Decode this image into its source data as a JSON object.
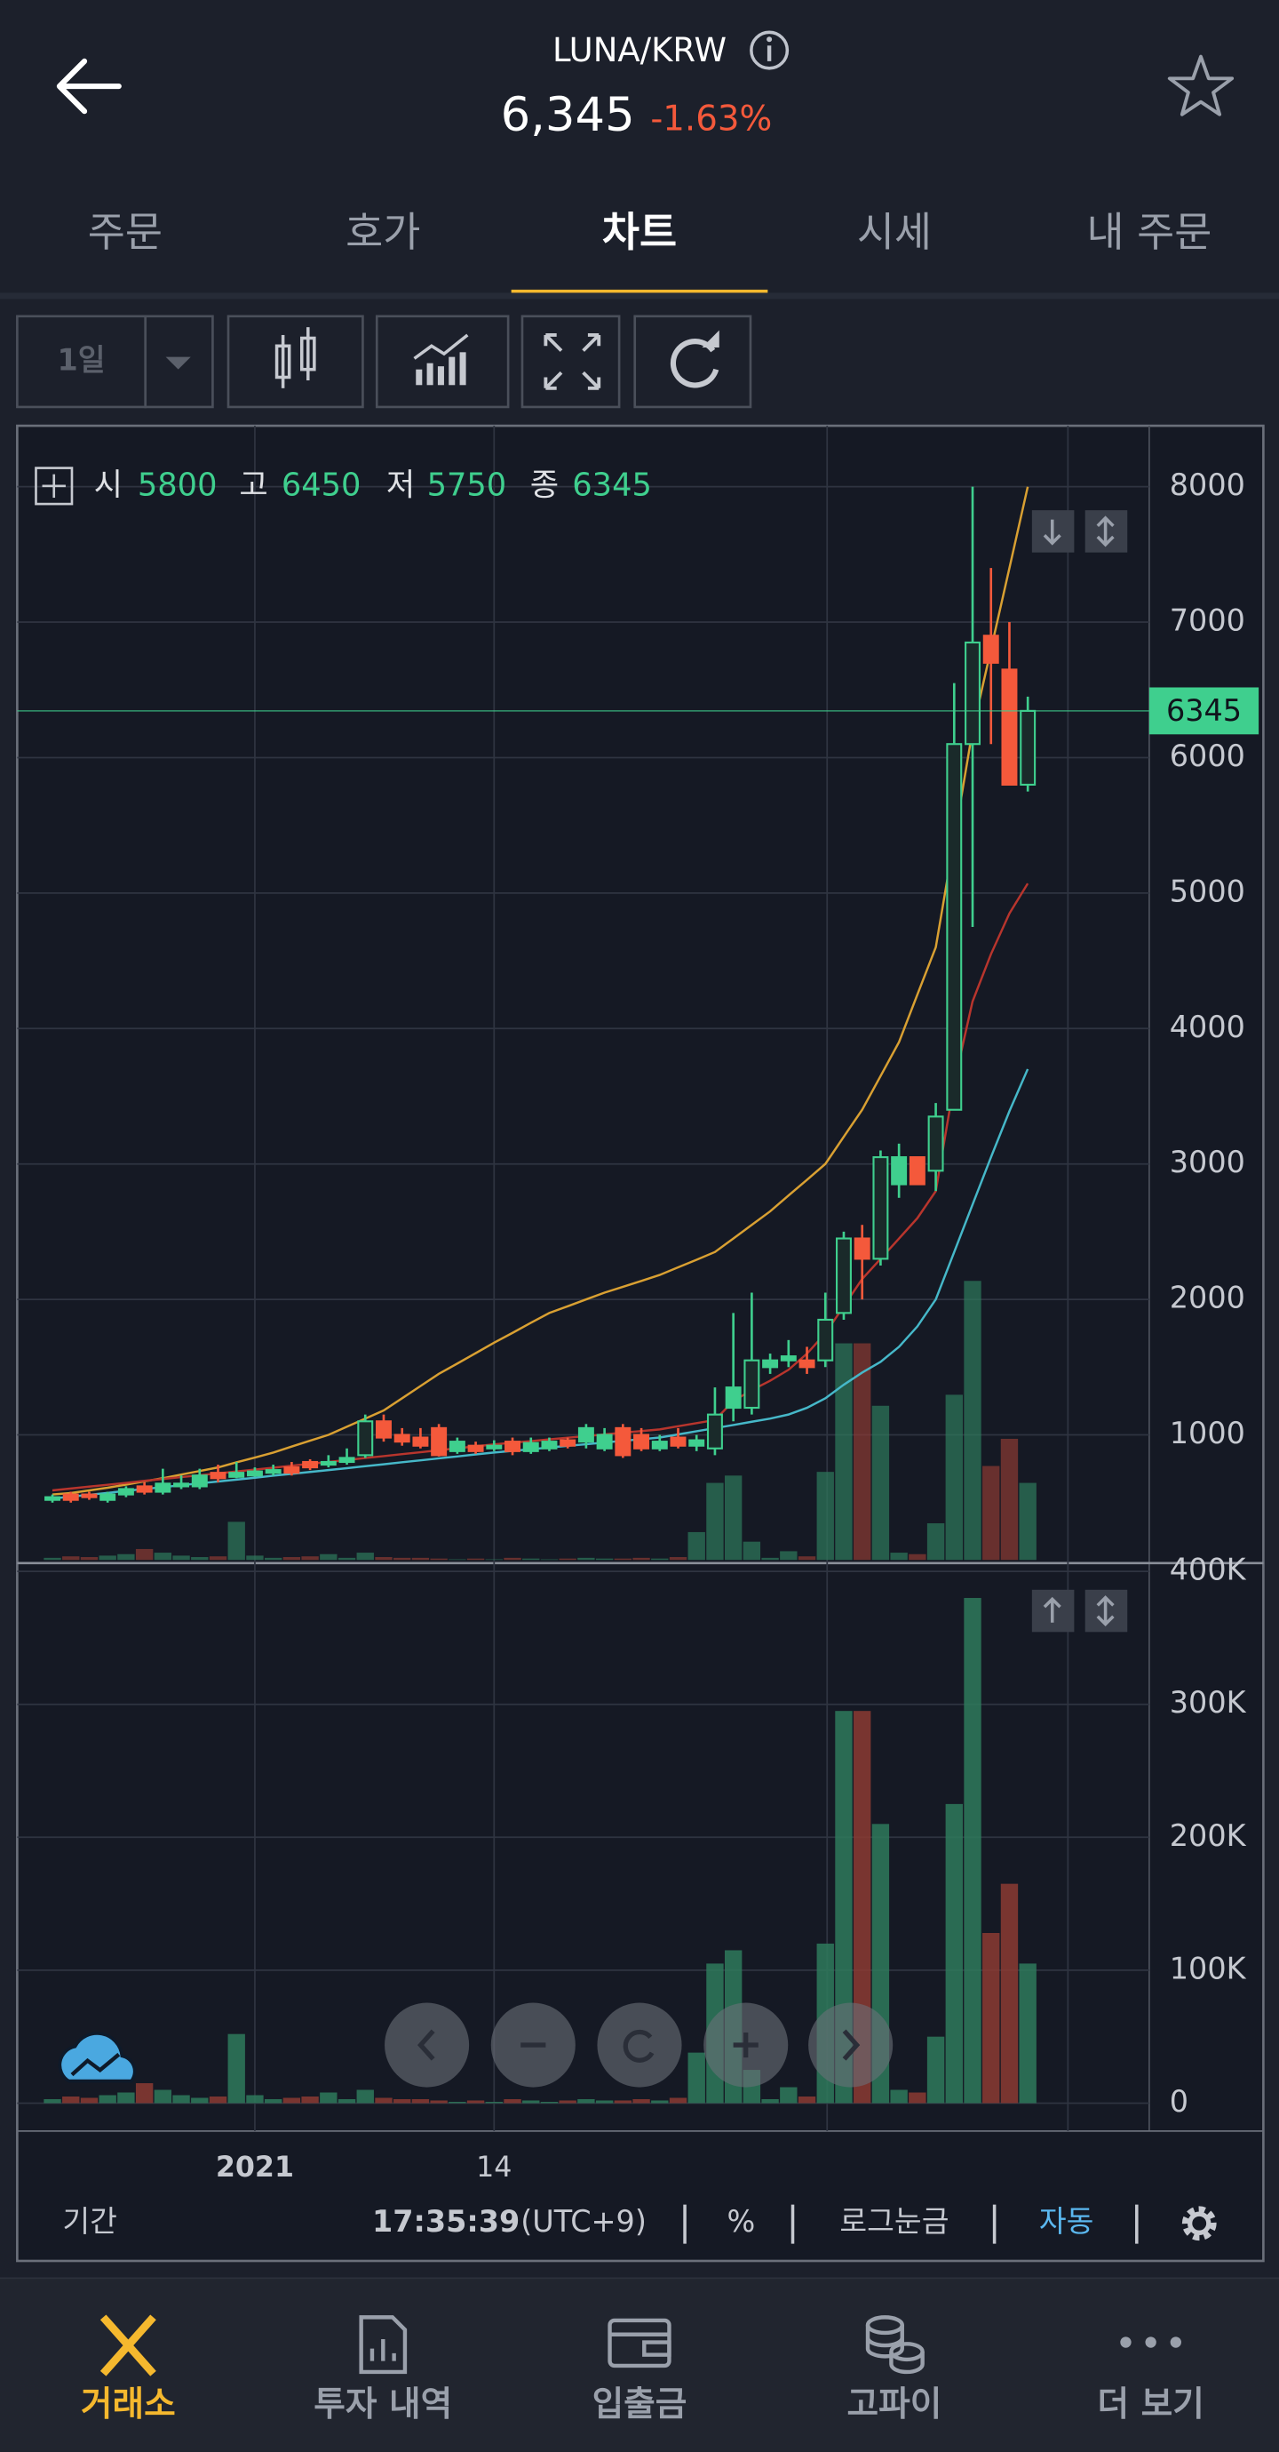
{
  "header": {
    "pair": "LUNA/KRW",
    "price": "6,345",
    "change": "-1.63%"
  },
  "tabs": [
    "주문",
    "호가",
    "차트",
    "시세",
    "내 주문"
  ],
  "active_tab": 2,
  "toolbar": {
    "interval": "1일"
  },
  "chart": {
    "type": "candlestick",
    "categories": [
      null,
      null,
      null,
      null,
      null,
      null,
      null,
      null,
      null,
      null,
      null,
      "2021",
      null,
      null,
      null,
      null,
      null,
      null,
      null,
      null,
      null,
      null,
      null,
      null,
      "14",
      null,
      null,
      null,
      null,
      null,
      null,
      null,
      null,
      null,
      null,
      null,
      null,
      null,
      null,
      null,
      null,
      null,
      null,
      null,
      null,
      null,
      null,
      null,
      null,
      null,
      null,
      null,
      null,
      null
    ],
    "legend": {
      "labels": [
        "시",
        "고",
        "저",
        "종"
      ],
      "values": [
        5800,
        6450,
        5750,
        6345
      ]
    },
    "current_price": 6345,
    "candles": {
      "open": [
        520,
        560,
        560,
        520,
        560,
        620,
        580,
        620,
        620,
        720,
        690,
        700,
        720,
        760,
        800,
        780,
        800,
        850,
        1100,
        1000,
        980,
        1050,
        880,
        920,
        900,
        950,
        880,
        900,
        960,
        950,
        900,
        1050,
        1000,
        900,
        980,
        920,
        900,
        1200,
        1200,
        1500,
        1550,
        1550,
        1550,
        1900,
        2450,
        2300,
        2850,
        3050,
        2950,
        3400,
        6100,
        6900,
        6650,
        5800
      ],
      "high": [
        560,
        580,
        580,
        580,
        620,
        650,
        750,
        700,
        750,
        780,
        800,
        760,
        780,
        800,
        820,
        850,
        900,
        1150,
        1150,
        1050,
        1050,
        1080,
        980,
        950,
        960,
        980,
        980,
        980,
        980,
        1080,
        1050,
        1080,
        1050,
        1000,
        1050,
        1000,
        1350,
        1900,
        2050,
        1600,
        1700,
        1650,
        2050,
        2500,
        2550,
        3100,
        3150,
        3050,
        3450,
        6550,
        8000,
        7400,
        7000,
        6450
      ],
      "low": [
        500,
        500,
        520,
        500,
        540,
        560,
        560,
        600,
        600,
        650,
        680,
        690,
        700,
        700,
        740,
        760,
        780,
        830,
        950,
        920,
        900,
        840,
        860,
        860,
        880,
        850,
        860,
        880,
        900,
        900,
        880,
        830,
        880,
        880,
        900,
        880,
        850,
        1100,
        1150,
        1450,
        1500,
        1450,
        1500,
        1850,
        2000,
        2250,
        2750,
        2850,
        2800,
        3400,
        4750,
        6100,
        5800,
        5750
      ],
      "close": [
        540,
        520,
        540,
        560,
        600,
        580,
        640,
        640,
        700,
        680,
        720,
        730,
        740,
        720,
        760,
        800,
        830,
        1100,
        980,
        950,
        920,
        850,
        950,
        880,
        920,
        880,
        940,
        950,
        920,
        1050,
        1000,
        850,
        900,
        950,
        920,
        960,
        1150,
        1350,
        1550,
        1550,
        1580,
        1500,
        1850,
        2450,
        2300,
        3050,
        3050,
        2850,
        3350,
        6100,
        6850,
        6700,
        5800,
        6345
      ]
    },
    "up_color": "#3fcf8e",
    "down_color": "#f4593b",
    "ma": [
      {
        "color": "#d9a032",
        "values": [
          560,
          570,
          590,
          610,
          633,
          657,
          680,
          707,
          733,
          760,
          797,
          833,
          870,
          913,
          957,
          1000,
          1060,
          1120,
          1180,
          1270,
          1360,
          1450,
          1527,
          1603,
          1680,
          1753,
          1827,
          1900,
          1950,
          2000,
          2050,
          2093,
          2137,
          2180,
          2237,
          2293,
          2350,
          2450,
          2550,
          2650,
          2767,
          2883,
          3000,
          3200,
          3400,
          3650,
          3900,
          4250,
          4600,
          5400,
          6200,
          6800,
          7400,
          8000
        ]
      },
      {
        "color": "#46b8c9",
        "values": [
          530,
          544,
          558,
          572,
          586,
          600,
          614,
          628,
          642,
          656,
          670,
          684,
          698,
          712,
          726,
          740,
          754,
          769,
          783,
          798,
          812,
          827,
          841,
          856,
          870,
          882,
          894,
          907,
          919,
          931,
          943,
          956,
          968,
          980,
          1003,
          1027,
          1050,
          1073,
          1097,
          1120,
          1150,
          1200,
          1270,
          1370,
          1460,
          1540,
          1650,
          1800,
          2000,
          2350,
          2700,
          3050,
          3390,
          3700
        ]
      },
      {
        "color": "#b8352d",
        "values": [
          590,
          604,
          618,
          632,
          646,
          660,
          674,
          688,
          702,
          716,
          730,
          744,
          758,
          772,
          786,
          800,
          814,
          829,
          843,
          858,
          872,
          887,
          901,
          916,
          930,
          942,
          954,
          967,
          979,
          991,
          1003,
          1016,
          1028,
          1040,
          1063,
          1087,
          1110,
          1250,
          1330,
          1400,
          1480,
          1600,
          1750,
          1950,
          2150,
          2300,
          2450,
          2600,
          2800,
          3600,
          4200,
          4550,
          4850,
          5070
        ]
      }
    ],
    "ylim": [
      76,
      8450
    ],
    "yticks": [
      1000,
      2000,
      3000,
      4000,
      5000,
      6000,
      7000,
      8000
    ],
    "volume": [
      3000,
      5000,
      4000,
      6000,
      8000,
      15000,
      10000,
      6000,
      4000,
      5000,
      52000,
      6000,
      3000,
      4000,
      5000,
      8000,
      3000,
      10000,
      4000,
      3000,
      3000,
      2000,
      1000,
      2000,
      1000,
      3000,
      2000,
      1000,
      2000,
      3000,
      2000,
      2000,
      3000,
      2000,
      4000,
      38000,
      105000,
      115000,
      25000,
      3000,
      12000,
      5000,
      120000,
      295000,
      295000,
      210000,
      10000,
      8000,
      50000,
      225000,
      380000,
      128000,
      165000,
      105000
    ],
    "volume_ylim": [
      -21000,
      405000
    ],
    "volume_ticks": [
      0,
      {
        "value": 100000,
        "label": "100K"
      },
      {
        "value": 200000,
        "label": "200K"
      },
      {
        "value": 300000,
        "label": "300K"
      },
      {
        "value": 400000,
        "label": "400K"
      }
    ],
    "grid": true
  },
  "footer": {
    "period": "기간",
    "time": "17:35:39",
    "timezone": "(UTC+9)",
    "percent": "%",
    "log_scale": "로그눈금",
    "auto": "자동"
  },
  "nav": [
    "거래소",
    "투자 내역",
    "입출금",
    "고파이",
    "더 보기"
  ],
  "active_nav": 0
}
